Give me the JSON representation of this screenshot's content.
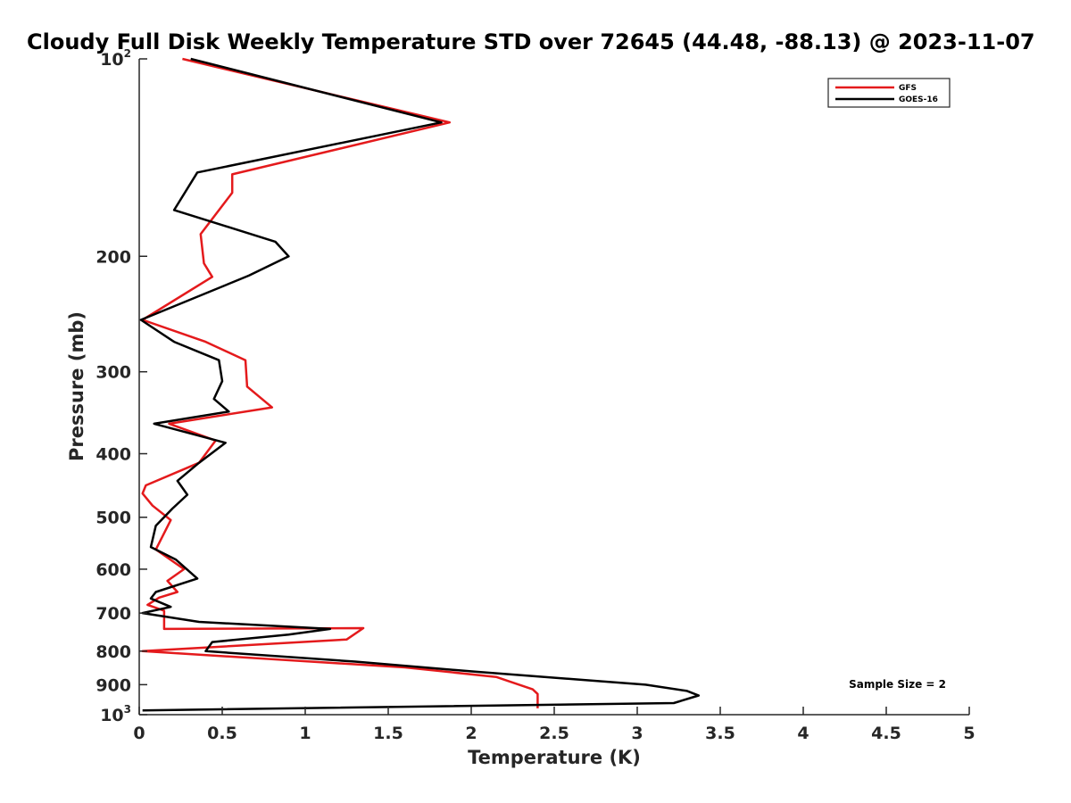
{
  "chart_data": {
    "type": "line",
    "title": "Cloudy Full Disk Weekly Temperature STD over 72645 (44.48, -88.13) @ 2023-11-07",
    "xlabel": "Temperature (K)",
    "ylabel": "Pressure (mb)",
    "xlim": [
      0,
      5
    ],
    "ylim": [
      100,
      1000
    ],
    "y_scale": "log",
    "y_reversed": true,
    "x_ticks": [
      "0",
      "0.5",
      "1",
      "1.5",
      "2",
      "2.5",
      "3",
      "3.5",
      "4",
      "4.5",
      "5"
    ],
    "y_ticks": [
      {
        "value": 100,
        "base": "10",
        "exp": "2"
      },
      {
        "value": 200,
        "label": "200"
      },
      {
        "value": 300,
        "label": "300"
      },
      {
        "value": 400,
        "label": "400"
      },
      {
        "value": 500,
        "label": "500"
      },
      {
        "value": 600,
        "label": "600"
      },
      {
        "value": 700,
        "label": "700"
      },
      {
        "value": 800,
        "label": "800"
      },
      {
        "value": 900,
        "label": "900"
      },
      {
        "value": 1000,
        "base": "10",
        "exp": "3"
      }
    ],
    "legend_position": "top-right",
    "annotation": "Sample Size = 2",
    "series": [
      {
        "name": "GFS",
        "color": "#e41a1c",
        "points": [
          [
            0.26,
            100
          ],
          [
            1.87,
            125
          ],
          [
            0.56,
            150
          ],
          [
            0.56,
            160
          ],
          [
            0.37,
            185
          ],
          [
            0.39,
            205
          ],
          [
            0.44,
            215
          ],
          [
            0.02,
            250
          ],
          [
            0.4,
            270
          ],
          [
            0.64,
            288
          ],
          [
            0.65,
            316
          ],
          [
            0.8,
            340
          ],
          [
            0.18,
            360
          ],
          [
            0.46,
            382
          ],
          [
            0.36,
            413
          ],
          [
            0.04,
            447
          ],
          [
            0.02,
            460
          ],
          [
            0.08,
            480
          ],
          [
            0.19,
            505
          ],
          [
            0.1,
            560
          ],
          [
            0.27,
            600
          ],
          [
            0.17,
            625
          ],
          [
            0.23,
            650
          ],
          [
            0.12,
            663
          ],
          [
            0.05,
            680
          ],
          [
            0.15,
            694
          ],
          [
            0.15,
            740
          ],
          [
            1.35,
            738
          ],
          [
            1.25,
            768
          ],
          [
            0.02,
            800
          ],
          [
            1.6,
            847
          ],
          [
            2.15,
            876
          ],
          [
            2.37,
            915
          ],
          [
            2.4,
            930
          ],
          [
            2.4,
            978
          ]
        ]
      },
      {
        "name": "GOES-16",
        "color": "#000000",
        "points": [
          [
            0.31,
            100
          ],
          [
            1.82,
            125
          ],
          [
            0.35,
            149
          ],
          [
            0.21,
            170
          ],
          [
            0.82,
            190
          ],
          [
            0.9,
            200
          ],
          [
            0.66,
            214
          ],
          [
            0.01,
            250
          ],
          [
            0.21,
            270
          ],
          [
            0.48,
            288
          ],
          [
            0.5,
            310
          ],
          [
            0.45,
            330
          ],
          [
            0.54,
            345
          ],
          [
            0.09,
            360
          ],
          [
            0.52,
            385
          ],
          [
            0.36,
            413
          ],
          [
            0.23,
            440
          ],
          [
            0.29,
            462
          ],
          [
            0.2,
            485
          ],
          [
            0.1,
            515
          ],
          [
            0.07,
            555
          ],
          [
            0.22,
            580
          ],
          [
            0.35,
            620
          ],
          [
            0.1,
            650
          ],
          [
            0.07,
            665
          ],
          [
            0.19,
            685
          ],
          [
            0.02,
            700
          ],
          [
            0.36,
            722
          ],
          [
            1.15,
            740
          ],
          [
            0.9,
            755
          ],
          [
            0.44,
            775
          ],
          [
            0.4,
            800
          ],
          [
            1.3,
            830
          ],
          [
            2.03,
            860
          ],
          [
            3.05,
            900
          ],
          [
            3.3,
            920
          ],
          [
            3.37,
            935
          ],
          [
            3.22,
            960
          ],
          [
            0.02,
            985
          ]
        ]
      }
    ]
  }
}
